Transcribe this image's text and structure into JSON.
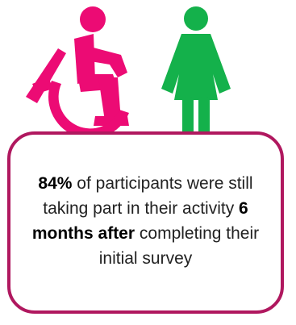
{
  "colors": {
    "wheelchair_icon": "#ec0b74",
    "person_icon": "#14b14b",
    "card_border": "#b0185f"
  },
  "icons": {
    "left": "wheelchair-user-icon",
    "right": "woman-icon"
  },
  "statement": {
    "stat_percent": "84%",
    "part1": "of participants were still taking part in their activity",
    "highlight": "6 months after",
    "part2": "completing their initial survey"
  }
}
